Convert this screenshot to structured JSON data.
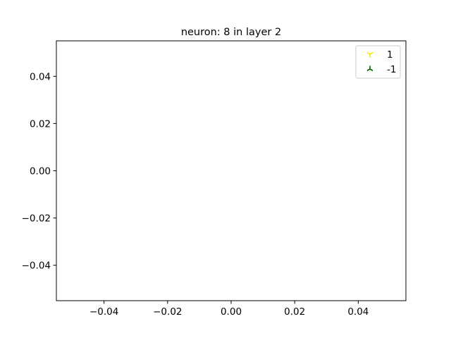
{
  "chart_data": {
    "type": "scatter",
    "title": "neuron: 8 in layer 2",
    "xlabel": "",
    "ylabel": "",
    "xlim": [
      -0.055,
      0.055
    ],
    "ylim": [
      -0.055,
      0.055
    ],
    "xticks": [
      -0.04,
      -0.02,
      0.0,
      0.02,
      0.04
    ],
    "yticks": [
      -0.04,
      -0.02,
      0.0,
      0.02,
      0.04
    ],
    "xtick_labels": [
      "−0.04",
      "−0.02",
      "0.00",
      "0.02",
      "0.04"
    ],
    "ytick_labels": [
      "−0.04",
      "−0.02",
      "0.00",
      "0.02",
      "0.04"
    ],
    "grid": false,
    "legend_position": "top-right",
    "series": [
      {
        "name": "1",
        "marker": "tri_down",
        "color": "#f5e800",
        "points": []
      },
      {
        "name": "-1",
        "marker": "tri_up",
        "color": "#006400",
        "points": []
      }
    ]
  }
}
